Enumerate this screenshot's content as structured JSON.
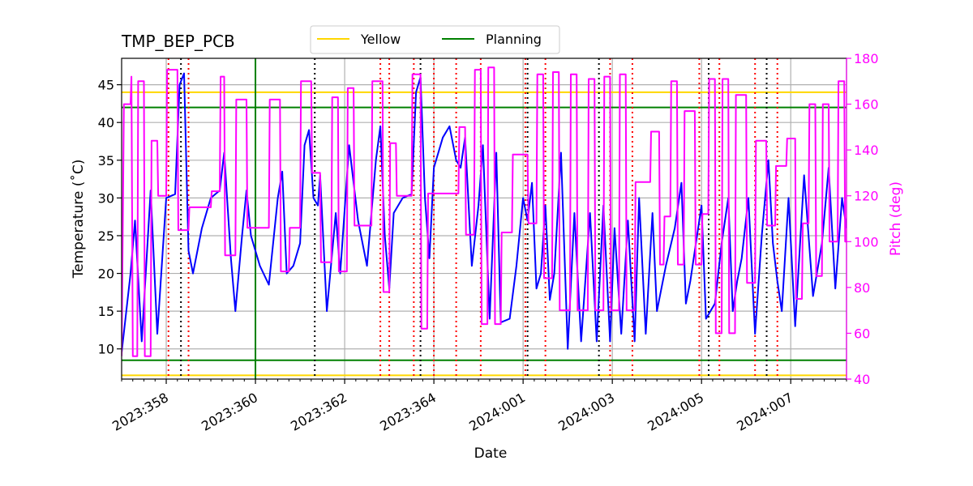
{
  "chart_data": {
    "type": "line",
    "title": "TMP_BEP_PCB",
    "xlabel": "Date",
    "ylabel": "Temperature ($^\\circ$C)",
    "ylabel_display": "Temperature (˚C)",
    "y2label": "Pitch (deg)",
    "xlim": [
      357.0,
      373.25
    ],
    "ylim": [
      6.0,
      48.5
    ],
    "y2lim": [
      40,
      180
    ],
    "x_ticks": [
      {
        "x": 358,
        "label": "2023:358"
      },
      {
        "x": 360,
        "label": "2023:360"
      },
      {
        "x": 362,
        "label": "2023:362"
      },
      {
        "x": 364,
        "label": "2023:364"
      },
      {
        "x": 366,
        "label": "2024:001"
      },
      {
        "x": 368,
        "label": "2024:003"
      },
      {
        "x": 370,
        "label": "2024:005"
      },
      {
        "x": 372,
        "label": "2024:007"
      }
    ],
    "y_ticks": [
      10,
      15,
      20,
      25,
      30,
      35,
      40,
      45
    ],
    "y2_ticks": [
      40,
      60,
      80,
      100,
      120,
      140,
      160,
      180
    ],
    "grid": true,
    "legend": {
      "placement": "top-center",
      "entries": [
        {
          "name": "Yellow",
          "color": "#ffd700"
        },
        {
          "name": "Planning",
          "color": "#008000"
        }
      ]
    },
    "limits": {
      "yellow": [
        6.5,
        44.0
      ],
      "planning": [
        8.5,
        42.0
      ]
    },
    "planning_vertical_x": 360.0,
    "red_dotted_x": [
      358.05,
      358.5,
      362.8,
      363.0,
      363.55,
      364.0,
      364.5,
      365.05,
      366.05,
      366.5,
      367.95,
      368.45,
      369.95,
      370.4,
      371.2,
      371.7
    ],
    "black_dotted_x": [
      358.33,
      361.33,
      363.7,
      366.1,
      367.7,
      370.16,
      371.46
    ],
    "series": [
      {
        "name": "Temperature",
        "axis": "left",
        "color": "#0000ff",
        "points": [
          [
            357.0,
            9.5
          ],
          [
            357.2,
            20
          ],
          [
            357.3,
            27
          ],
          [
            357.45,
            11
          ],
          [
            357.65,
            31
          ],
          [
            357.8,
            12
          ],
          [
            358.0,
            30
          ],
          [
            358.2,
            30.5
          ],
          [
            358.3,
            45
          ],
          [
            358.4,
            46.5
          ],
          [
            358.5,
            23
          ],
          [
            358.6,
            20
          ],
          [
            358.8,
            26
          ],
          [
            359.0,
            30
          ],
          [
            359.2,
            31
          ],
          [
            359.3,
            36
          ],
          [
            359.45,
            22
          ],
          [
            359.55,
            15
          ],
          [
            359.7,
            25
          ],
          [
            359.8,
            31
          ],
          [
            359.9,
            25
          ],
          [
            360.1,
            21
          ],
          [
            360.3,
            18.5
          ],
          [
            360.5,
            30
          ],
          [
            360.6,
            33.5
          ],
          [
            360.7,
            20
          ],
          [
            360.85,
            21
          ],
          [
            361.0,
            24
          ],
          [
            361.1,
            37
          ],
          [
            361.2,
            39
          ],
          [
            361.3,
            30
          ],
          [
            361.4,
            29
          ],
          [
            361.45,
            33
          ],
          [
            361.6,
            15
          ],
          [
            361.8,
            28
          ],
          [
            361.9,
            20
          ],
          [
            362.1,
            37
          ],
          [
            362.3,
            27
          ],
          [
            362.5,
            21
          ],
          [
            362.7,
            35
          ],
          [
            362.8,
            39.5
          ],
          [
            362.9,
            25
          ],
          [
            363.0,
            18
          ],
          [
            363.1,
            28
          ],
          [
            363.3,
            30
          ],
          [
            363.5,
            30.5
          ],
          [
            363.6,
            44
          ],
          [
            363.7,
            46
          ],
          [
            363.8,
            30
          ],
          [
            363.9,
            22
          ],
          [
            364.0,
            34
          ],
          [
            364.2,
            38
          ],
          [
            364.35,
            39.5
          ],
          [
            364.5,
            35
          ],
          [
            364.6,
            34
          ],
          [
            364.7,
            38
          ],
          [
            364.85,
            21
          ],
          [
            365.0,
            29
          ],
          [
            365.1,
            37
          ],
          [
            365.25,
            14
          ],
          [
            365.4,
            36
          ],
          [
            365.5,
            13.5
          ],
          [
            365.7,
            14
          ],
          [
            365.85,
            21
          ],
          [
            366.0,
            30
          ],
          [
            366.1,
            27
          ],
          [
            366.2,
            32
          ],
          [
            366.3,
            18
          ],
          [
            366.4,
            20
          ],
          [
            366.5,
            29
          ],
          [
            366.6,
            16.5
          ],
          [
            366.7,
            20
          ],
          [
            366.85,
            36
          ],
          [
            367.0,
            10
          ],
          [
            367.15,
            28
          ],
          [
            367.3,
            11
          ],
          [
            367.5,
            28
          ],
          [
            367.65,
            11
          ],
          [
            367.8,
            29
          ],
          [
            367.95,
            11
          ],
          [
            368.05,
            26
          ],
          [
            368.2,
            12
          ],
          [
            368.35,
            27
          ],
          [
            368.5,
            11
          ],
          [
            368.6,
            30
          ],
          [
            368.75,
            12
          ],
          [
            368.9,
            28
          ],
          [
            369.0,
            15
          ],
          [
            369.2,
            21
          ],
          [
            369.4,
            26
          ],
          [
            369.55,
            32
          ],
          [
            369.65,
            16
          ],
          [
            369.75,
            19
          ],
          [
            369.85,
            23
          ],
          [
            370.0,
            29
          ],
          [
            370.1,
            14
          ],
          [
            370.3,
            16
          ],
          [
            370.45,
            24
          ],
          [
            370.6,
            30
          ],
          [
            370.7,
            15
          ],
          [
            370.8,
            19
          ],
          [
            370.9,
            22
          ],
          [
            371.05,
            30
          ],
          [
            371.2,
            12
          ],
          [
            371.35,
            25
          ],
          [
            371.5,
            35
          ],
          [
            371.6,
            24
          ],
          [
            371.7,
            19
          ],
          [
            371.8,
            15
          ],
          [
            371.95,
            30
          ],
          [
            372.1,
            13
          ],
          [
            372.3,
            33
          ],
          [
            372.5,
            17
          ],
          [
            372.7,
            24
          ],
          [
            372.85,
            34
          ],
          [
            373.0,
            18
          ],
          [
            373.15,
            30
          ],
          [
            373.25,
            26
          ]
        ]
      },
      {
        "name": "Pitch",
        "axis": "right",
        "color": "#ff00ff",
        "points": [
          [
            357.0,
            50
          ],
          [
            357.05,
            160
          ],
          [
            357.2,
            160
          ],
          [
            357.22,
            172
          ],
          [
            357.25,
            50
          ],
          [
            357.35,
            50
          ],
          [
            357.37,
            170
          ],
          [
            357.5,
            170
          ],
          [
            357.52,
            50
          ],
          [
            357.65,
            50
          ],
          [
            357.67,
            144
          ],
          [
            357.8,
            144
          ],
          [
            357.82,
            120
          ],
          [
            358.0,
            120
          ],
          [
            358.02,
            175
          ],
          [
            358.25,
            175
          ],
          [
            358.27,
            105
          ],
          [
            358.5,
            105
          ],
          [
            358.52,
            115
          ],
          [
            359.0,
            115
          ],
          [
            359.02,
            122
          ],
          [
            359.2,
            122
          ],
          [
            359.22,
            172
          ],
          [
            359.3,
            172
          ],
          [
            359.32,
            94
          ],
          [
            359.55,
            94
          ],
          [
            359.57,
            162
          ],
          [
            359.8,
            162
          ],
          [
            359.82,
            106
          ],
          [
            360.3,
            106
          ],
          [
            360.32,
            162
          ],
          [
            360.55,
            162
          ],
          [
            360.57,
            87
          ],
          [
            360.75,
            87
          ],
          [
            360.77,
            106
          ],
          [
            361.0,
            106
          ],
          [
            361.02,
            170
          ],
          [
            361.25,
            170
          ],
          [
            361.27,
            130
          ],
          [
            361.45,
            130
          ],
          [
            361.47,
            91
          ],
          [
            361.7,
            91
          ],
          [
            361.72,
            163
          ],
          [
            361.85,
            163
          ],
          [
            361.87,
            87
          ],
          [
            362.05,
            87
          ],
          [
            362.07,
            167
          ],
          [
            362.2,
            167
          ],
          [
            362.22,
            107
          ],
          [
            362.6,
            107
          ],
          [
            362.62,
            170
          ],
          [
            362.85,
            170
          ],
          [
            362.87,
            78
          ],
          [
            363.0,
            78
          ],
          [
            363.02,
            143
          ],
          [
            363.15,
            143
          ],
          [
            363.17,
            120
          ],
          [
            363.5,
            120
          ],
          [
            363.52,
            173
          ],
          [
            363.7,
            173
          ],
          [
            363.72,
            62
          ],
          [
            363.85,
            62
          ],
          [
            363.87,
            121
          ],
          [
            364.55,
            121
          ],
          [
            364.57,
            150
          ],
          [
            364.7,
            150
          ],
          [
            364.72,
            103
          ],
          [
            364.9,
            103
          ],
          [
            364.92,
            175
          ],
          [
            365.05,
            175
          ],
          [
            365.07,
            64
          ],
          [
            365.2,
            64
          ],
          [
            365.22,
            176
          ],
          [
            365.35,
            176
          ],
          [
            365.37,
            64
          ],
          [
            365.5,
            64
          ],
          [
            365.52,
            104
          ],
          [
            365.75,
            104
          ],
          [
            365.77,
            138
          ],
          [
            366.1,
            138
          ],
          [
            366.12,
            108
          ],
          [
            366.3,
            108
          ],
          [
            366.32,
            173
          ],
          [
            366.45,
            173
          ],
          [
            366.47,
            84
          ],
          [
            366.65,
            84
          ],
          [
            366.67,
            174
          ],
          [
            366.8,
            174
          ],
          [
            366.82,
            70
          ],
          [
            367.05,
            70
          ],
          [
            367.07,
            173
          ],
          [
            367.2,
            173
          ],
          [
            367.22,
            70
          ],
          [
            367.45,
            70
          ],
          [
            367.47,
            171
          ],
          [
            367.6,
            171
          ],
          [
            367.62,
            70
          ],
          [
            367.8,
            70
          ],
          [
            367.82,
            172
          ],
          [
            367.95,
            172
          ],
          [
            367.97,
            70
          ],
          [
            368.15,
            70
          ],
          [
            368.17,
            173
          ],
          [
            368.3,
            173
          ],
          [
            368.32,
            70
          ],
          [
            368.5,
            70
          ],
          [
            368.52,
            126
          ],
          [
            368.85,
            126
          ],
          [
            368.87,
            148
          ],
          [
            369.05,
            148
          ],
          [
            369.07,
            90
          ],
          [
            369.15,
            90
          ],
          [
            369.17,
            111
          ],
          [
            369.3,
            111
          ],
          [
            369.32,
            170
          ],
          [
            369.45,
            170
          ],
          [
            369.47,
            90
          ],
          [
            369.6,
            90
          ],
          [
            369.62,
            157
          ],
          [
            369.85,
            157
          ],
          [
            369.87,
            90
          ],
          [
            370.0,
            90
          ],
          [
            370.02,
            112
          ],
          [
            370.15,
            112
          ],
          [
            370.17,
            171
          ],
          [
            370.3,
            171
          ],
          [
            370.32,
            60
          ],
          [
            370.45,
            60
          ],
          [
            370.47,
            171
          ],
          [
            370.6,
            171
          ],
          [
            370.62,
            60
          ],
          [
            370.75,
            60
          ],
          [
            370.77,
            164
          ],
          [
            371.0,
            164
          ],
          [
            371.02,
            82
          ],
          [
            371.2,
            82
          ],
          [
            371.22,
            144
          ],
          [
            371.45,
            144
          ],
          [
            371.47,
            107
          ],
          [
            371.65,
            107
          ],
          [
            371.67,
            133
          ],
          [
            371.9,
            133
          ],
          [
            371.92,
            145
          ],
          [
            372.1,
            145
          ],
          [
            372.12,
            75
          ],
          [
            372.25,
            75
          ],
          [
            372.27,
            108
          ],
          [
            372.4,
            108
          ],
          [
            372.42,
            160
          ],
          [
            372.55,
            160
          ],
          [
            372.57,
            85
          ],
          [
            372.7,
            85
          ],
          [
            372.72,
            160
          ],
          [
            372.85,
            160
          ],
          [
            372.87,
            100
          ],
          [
            373.05,
            100
          ],
          [
            373.07,
            170
          ],
          [
            373.2,
            170
          ],
          [
            373.22,
            100
          ],
          [
            373.25,
            100
          ]
        ]
      }
    ]
  }
}
